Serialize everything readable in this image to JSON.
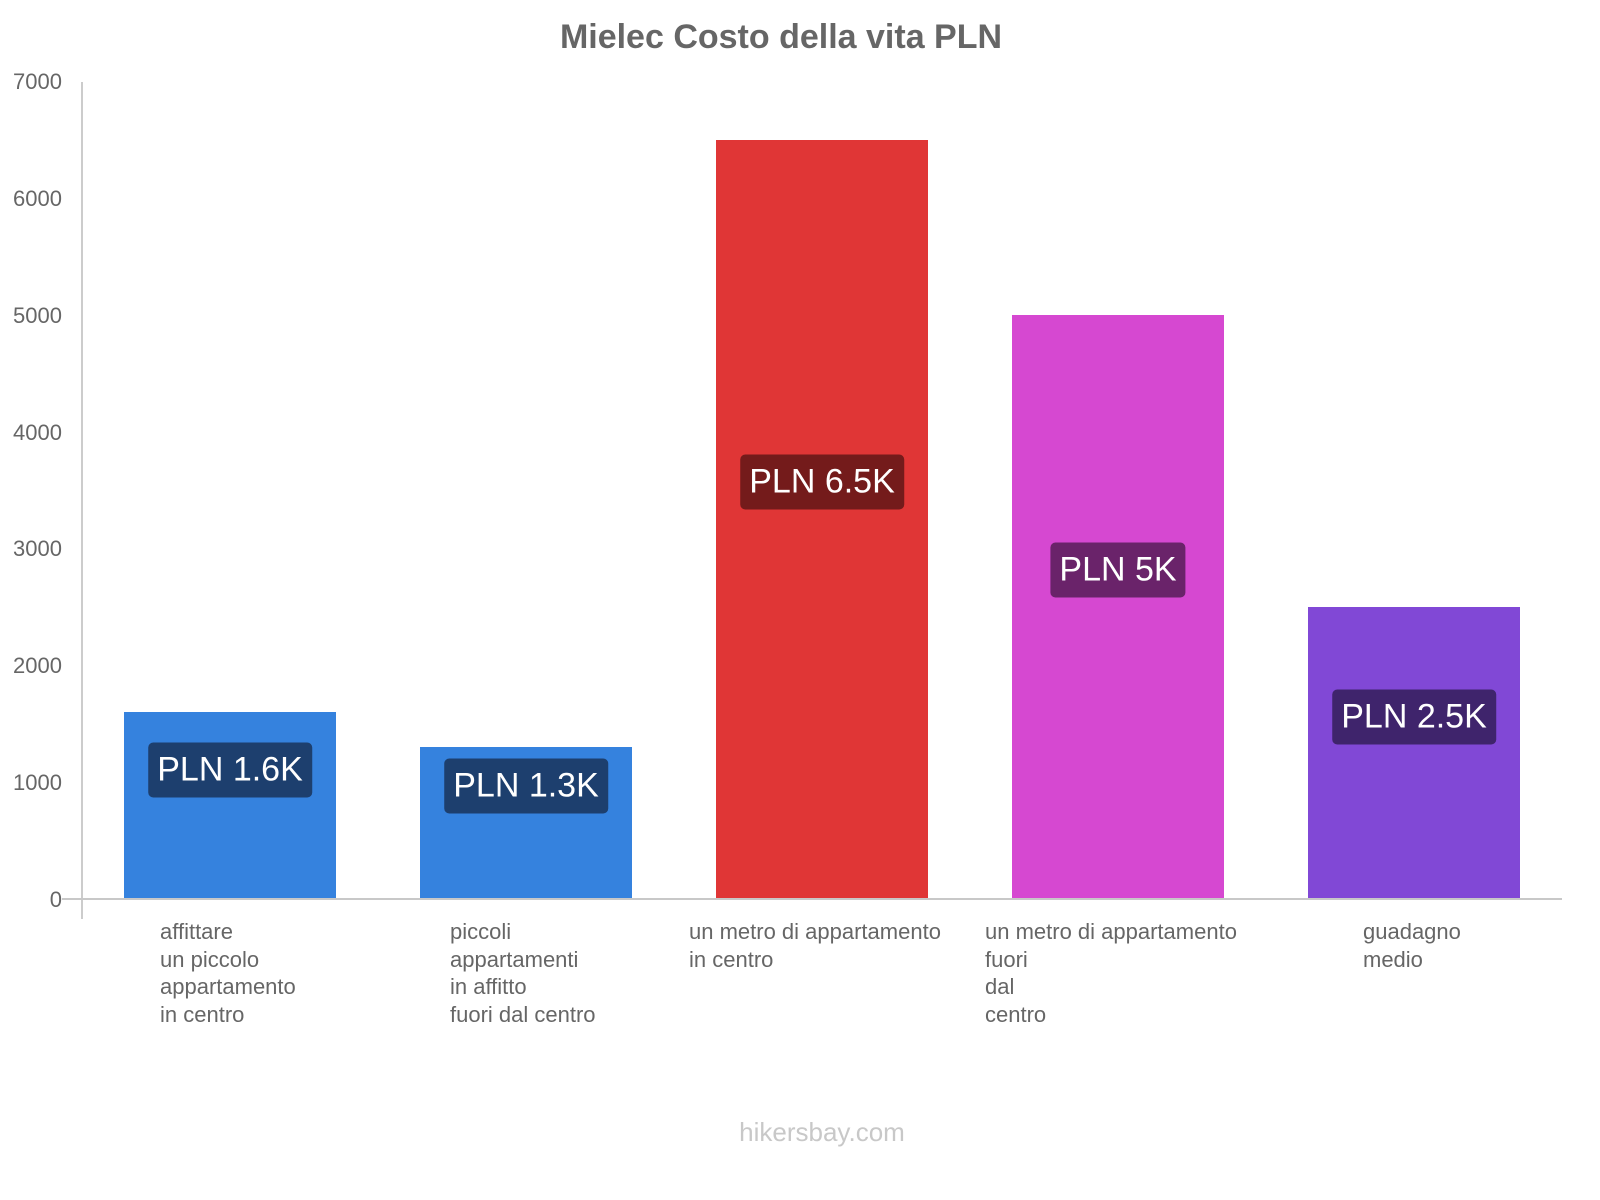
{
  "chart_data": {
    "type": "bar",
    "title": "Mielec Costo della vita PLN",
    "xlabel": "",
    "ylabel": "",
    "ylim": [
      0,
      7000
    ],
    "yticks": [
      "0",
      "1000",
      "2000",
      "3000",
      "4000",
      "5000",
      "6000",
      "7000"
    ],
    "grid": false,
    "legend": null,
    "categories": [
      "affittare un piccolo appartamento in centro",
      "piccoli appartamenti in affitto fuori dal centro",
      "un metro di appartamento in centro",
      "un metro di appartamento fuori dal centro",
      "guadagno medio"
    ],
    "values": [
      1600,
      1300,
      6500,
      5000,
      2500
    ],
    "value_labels": [
      "PLN 1.6K",
      "PLN 1.3K",
      "PLN 6.5K",
      "PLN 5K",
      "PLN 2.5K"
    ],
    "bar_colors": [
      "#3582de",
      "#3582de",
      "#e03636",
      "#d648d1",
      "#8148d6"
    ],
    "label_colors": [
      "#1d3f6e",
      "#1d3f6e",
      "#741b1b",
      "#6a236a",
      "#3f246c"
    ]
  },
  "labels": {
    "x": [
      "affittare\nun piccolo\nappartamento\nin centro",
      "piccoli\nappartamenti\nin affitto\nfuori dal centro",
      "un metro di appartamento\nin centro",
      "un metro di appartamento\nfuori\ndal\ncentro",
      "guadagno\nmedio"
    ]
  },
  "footer": "hikersbay.com"
}
